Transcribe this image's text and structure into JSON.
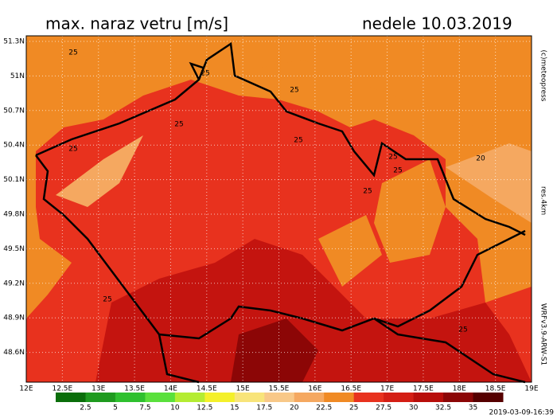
{
  "header": {
    "title": "max. naraz vetru [m/s]",
    "date": "nedele 10.03.2019"
  },
  "latitudes": [
    "51.3N",
    "51N",
    "50.7N",
    "50.4N",
    "50.1N",
    "49.8N",
    "49.5N",
    "49.2N",
    "48.9N",
    "48.6N"
  ],
  "longitudes": [
    "12E",
    "12.5E",
    "13E",
    "13.5E",
    "14E",
    "14.5E",
    "15E",
    "15.5E",
    "16E",
    "16.5E",
    "17E",
    "17.5E",
    "18E",
    "18.5E",
    "19E"
  ],
  "colorbar": {
    "labels": [
      "2.5",
      "5",
      "7.5",
      "10",
      "12.5",
      "15",
      "17.5",
      "20",
      "22.5",
      "25",
      "27.5",
      "30",
      "32.5",
      "35"
    ],
    "colors": [
      "#0a6e0a",
      "#1e9a1e",
      "#2ec02e",
      "#5ae03c",
      "#b4ec32",
      "#f4f02a",
      "#f8e47a",
      "#f8c888",
      "#f5a860",
      "#f08a24",
      "#e8321e",
      "#d41e14",
      "#b80e0a",
      "#8c0606",
      "#560000"
    ]
  },
  "side": {
    "copyright": "(c)meteopress",
    "resolution": "res.4km",
    "model": "WRFv3.9-ARW-S1"
  },
  "stamp": "2019-03-09-16:39",
  "contour_labels": [
    "25",
    "25",
    "25",
    "25",
    "25",
    "25",
    "25",
    "25",
    "25",
    "20",
    "25",
    "25"
  ]
}
